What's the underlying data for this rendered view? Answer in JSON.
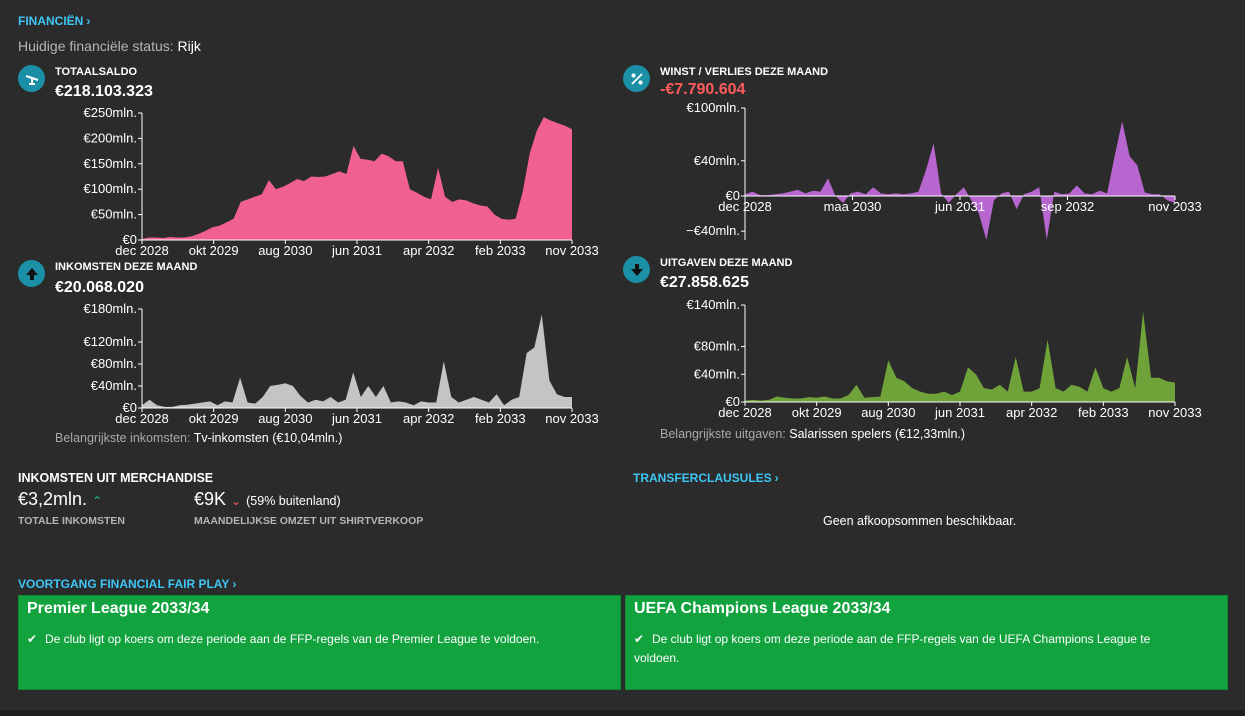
{
  "financien": {
    "label": "FINANCIËN",
    "chevron": "›"
  },
  "status": {
    "label": "Huidige financiële status:",
    "value": "Rijk"
  },
  "colors": {
    "pink": "#f0618f",
    "purple": "#b765cf",
    "gray": "#c4c4c4",
    "green": "#6fa33a",
    "accent": "#3ec6f5",
    "negative": "#ff5b5b",
    "ffp_green": "#12a23e"
  },
  "panels": {
    "balance": {
      "title": "TOTAALSALDO",
      "value": "€218.103.323",
      "icon": "scale-icon"
    },
    "profit": {
      "title": "WINST / VERLIES DEZE MAAND",
      "value": "-€7.790.604",
      "icon": "percent-icon"
    },
    "income": {
      "title": "INKOMSTEN DEZE MAAND",
      "value": "€20.068.020",
      "icon": "arrow-up-icon",
      "note_label": "Belangrijkste inkomsten:",
      "note_value": "Tv-inkomsten (€10,04mln.)"
    },
    "expenses": {
      "title": "UITGAVEN DEZE MAAND",
      "value": "€27.858.625",
      "icon": "arrow-down-icon",
      "note_label": "Belangrijkste uitgaven:",
      "note_value": "Salarissen spelers (€12,33mln.)"
    }
  },
  "chart_data": [
    {
      "type": "area",
      "id": "balance",
      "color": "#f0618f",
      "ylim": [
        0,
        250
      ],
      "yticks": [
        0,
        50,
        100,
        150,
        200,
        250
      ],
      "ytick_labels": [
        "€0",
        "€50mln.",
        "€100mln.",
        "€150mln.",
        "€200mln.",
        "€250mln."
      ],
      "xticks": [
        "dec 2028",
        "okt 2029",
        "aug 2030",
        "jun 2031",
        "apr 2032",
        "feb 2033",
        "nov 2033"
      ],
      "values": [
        2,
        5,
        5,
        4,
        6,
        5,
        5,
        7,
        12,
        18,
        25,
        28,
        35,
        42,
        75,
        80,
        85,
        90,
        118,
        100,
        105,
        112,
        120,
        116,
        125,
        124,
        125,
        130,
        135,
        130,
        185,
        160,
        158,
        155,
        170,
        165,
        155,
        155,
        100,
        93,
        85,
        80,
        142,
        85,
        75,
        80,
        78,
        72,
        68,
        66,
        50,
        42,
        40,
        42,
        95,
        170,
        215,
        242,
        235,
        230,
        225,
        218
      ]
    },
    {
      "type": "area",
      "id": "profit",
      "color": "#b765cf",
      "ylim": [
        -50,
        100
      ],
      "yticks": [
        -40,
        0,
        40,
        100
      ],
      "ytick_labels": [
        "−€40mln.",
        "€0",
        "€40mln.",
        "€100mln."
      ],
      "xticks": [
        "dec 2028",
        "maa 2030",
        "jun 2031",
        "sep 2032",
        "nov 2033"
      ],
      "values": [
        2,
        5,
        1,
        1,
        2,
        3,
        5,
        7,
        3,
        6,
        5,
        20,
        0,
        -8,
        3,
        5,
        2,
        10,
        3,
        2,
        3,
        2,
        3,
        5,
        30,
        60,
        3,
        -8,
        2,
        10,
        -5,
        -20,
        -50,
        -5,
        3,
        5,
        -15,
        2,
        5,
        10,
        -50,
        5,
        2,
        3,
        12,
        3,
        2,
        6,
        3,
        45,
        85,
        45,
        35,
        4,
        2,
        2,
        -5,
        -7.8
      ]
    },
    {
      "type": "area",
      "id": "income",
      "color": "#c4c4c4",
      "ylim": [
        0,
        180
      ],
      "yticks": [
        0,
        40,
        80,
        120,
        180
      ],
      "ytick_labels": [
        "€0",
        "€40mln.",
        "€80mln.",
        "€120mln.",
        "€180mln."
      ],
      "xticks": [
        "dec 2028",
        "okt 2029",
        "aug 2030",
        "jun 2031",
        "apr 2032",
        "feb 2033",
        "nov 2033"
      ],
      "values": [
        5,
        15,
        5,
        2,
        2,
        5,
        6,
        8,
        10,
        12,
        5,
        12,
        10,
        55,
        10,
        8,
        20,
        40,
        42,
        45,
        40,
        22,
        10,
        15,
        12,
        20,
        10,
        15,
        65,
        20,
        40,
        20,
        40,
        10,
        12,
        10,
        5,
        12,
        10,
        10,
        85,
        20,
        10,
        15,
        20,
        15,
        10,
        25,
        5,
        15,
        20,
        100,
        110,
        170,
        50,
        25,
        20,
        20
      ]
    },
    {
      "type": "area",
      "id": "expenses",
      "color": "#6fa33a",
      "ylim": [
        0,
        140
      ],
      "yticks": [
        0,
        40,
        80,
        140
      ],
      "ytick_labels": [
        "€0",
        "€40mln.",
        "€80mln.",
        "€140mln."
      ],
      "xticks": [
        "dec 2028",
        "okt 2029",
        "aug 2030",
        "jun 2031",
        "apr 2032",
        "feb 2033",
        "nov 2033"
      ],
      "values": [
        2,
        3,
        2,
        3,
        8,
        6,
        5,
        5,
        7,
        6,
        8,
        5,
        5,
        10,
        25,
        6,
        7,
        8,
        60,
        35,
        30,
        20,
        15,
        12,
        12,
        15,
        10,
        15,
        50,
        40,
        20,
        18,
        25,
        15,
        65,
        15,
        15,
        20,
        90,
        20,
        15,
        25,
        22,
        15,
        50,
        20,
        15,
        20,
        65,
        20,
        130,
        35,
        35,
        30,
        28
      ]
    }
  ],
  "merchandise": {
    "title": "INKOMSTEN UIT MERCHANDISE",
    "total_value": "€3,2mln.",
    "total_label": "TOTALE INKOMSTEN",
    "monthly_value": "€9K",
    "monthly_extra": "(59% buitenland)",
    "monthly_label": "MAANDELIJKSE OMZET UIT SHIRTVERKOOP"
  },
  "transfer": {
    "label": "TRANSFERCLAUSULES",
    "empty_text": "Geen afkoopsommen beschikbaar."
  },
  "ffp": {
    "label": "VOORTGANG FINANCIAL FAIR PLAY",
    "boxes": [
      {
        "title": "Premier League 2033/34",
        "text": "De club ligt op koers om deze periode aan de FFP-regels van de Premier League te voldoen."
      },
      {
        "title": "UEFA Champions League 2033/34",
        "text": "De club ligt op koers om deze periode aan de FFP-regels van de UEFA Champions League te voldoen."
      }
    ]
  }
}
